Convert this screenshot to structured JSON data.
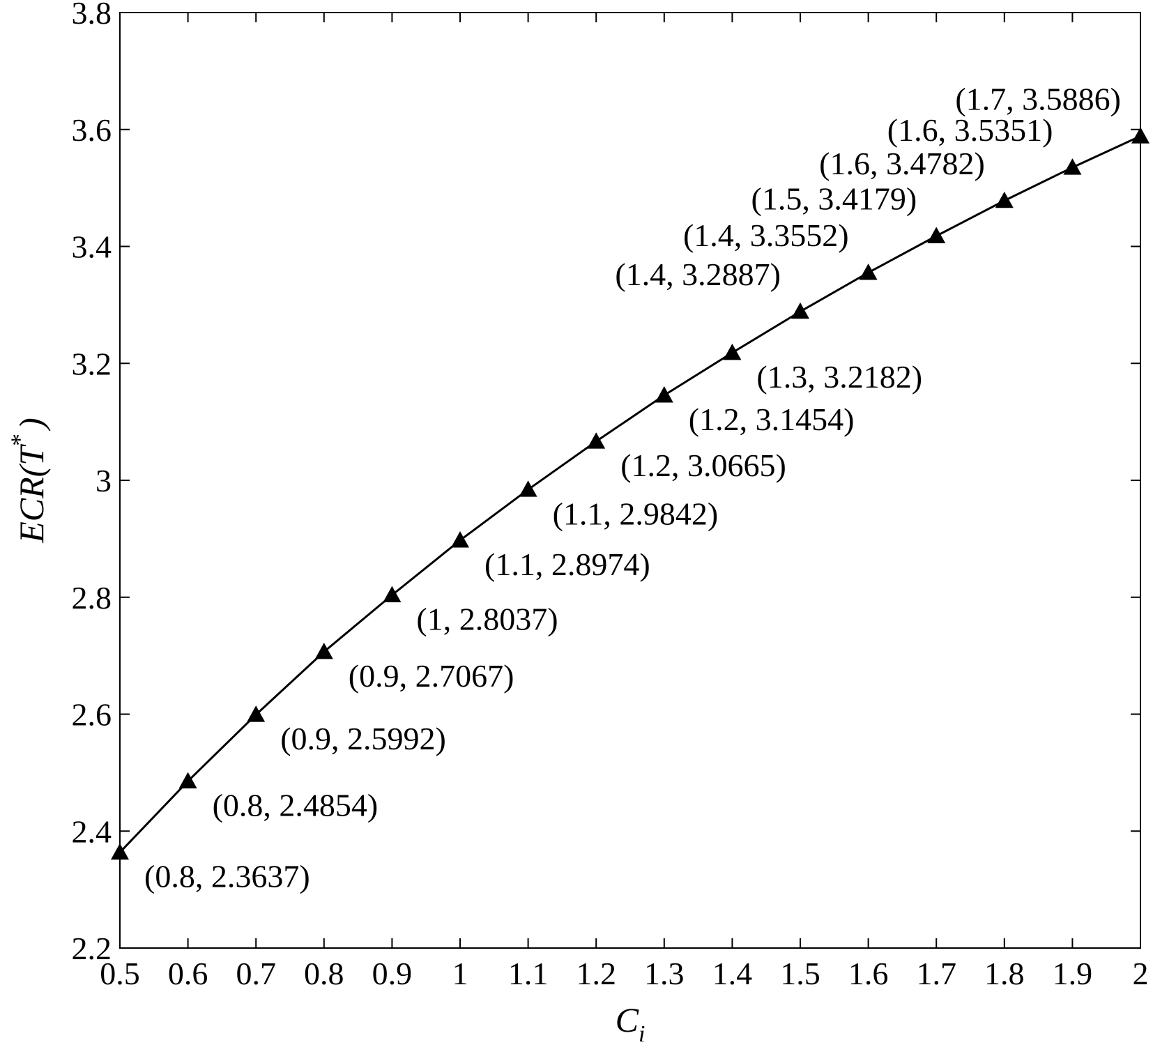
{
  "chart_data": {
    "type": "line",
    "title": "",
    "xlabel": "C",
    "xlabel_subscript": "i",
    "ylabel": "ECR(T",
    "ylabel_superscript": "*",
    "ylabel_suffix": ")",
    "xlim": [
      0.5,
      2
    ],
    "ylim": [
      2.2,
      3.8
    ],
    "xticks": [
      0.5,
      0.6,
      0.7,
      0.8,
      0.9,
      1,
      1.1,
      1.2,
      1.3,
      1.4,
      1.5,
      1.6,
      1.7,
      1.8,
      1.9,
      2
    ],
    "xtick_labels": [
      "0.5",
      "0.6",
      "0.7",
      "0.8",
      "0.9",
      "1",
      "1.1",
      "1.2",
      "1.3",
      "1.4",
      "1.5",
      "1.6",
      "1.7",
      "1.8",
      "1.9",
      "2"
    ],
    "yticks": [
      2.2,
      2.4,
      2.6,
      2.8,
      3,
      3.2,
      3.4,
      3.6,
      3.8
    ],
    "ytick_labels": [
      "2.2",
      "2.4",
      "2.6",
      "2.8",
      "3",
      "3.2",
      "3.4",
      "3.6",
      "3.8"
    ],
    "grid": false,
    "marker": "triangle",
    "line_color": "#000000",
    "series": [
      {
        "x": [
          0.5,
          0.6,
          0.7,
          0.8,
          0.9,
          1.0,
          1.1,
          1.2,
          1.3,
          1.4,
          1.5,
          1.6,
          1.7,
          1.8,
          1.9,
          2.0
        ],
        "y": [
          2.3637,
          2.4854,
          2.5992,
          2.7067,
          2.8037,
          2.8974,
          2.9842,
          3.0665,
          3.1454,
          3.2182,
          3.2887,
          3.3552,
          3.4179,
          3.4782,
          3.5351,
          3.5886
        ]
      }
    ],
    "annotations": [
      {
        "text": "(0.8, 2.3637)",
        "placement": "below-right"
      },
      {
        "text": "(0.8, 2.4854)",
        "placement": "below-right"
      },
      {
        "text": "(0.9, 2.5992)",
        "placement": "below-right"
      },
      {
        "text": "(0.9, 2.7067)",
        "placement": "below-right"
      },
      {
        "text": "(1, 2.8037)",
        "placement": "below-right"
      },
      {
        "text": "(1.1, 2.8974)",
        "placement": "below-right"
      },
      {
        "text": "(1.1, 2.9842)",
        "placement": "below-right"
      },
      {
        "text": "(1.2, 3.0665)",
        "placement": "below-right"
      },
      {
        "text": "(1.2, 3.1454)",
        "placement": "below-right"
      },
      {
        "text": "(1.3, 3.2182)",
        "placement": "below-right"
      },
      {
        "text": "(1.4, 3.2887)",
        "placement": "above-left"
      },
      {
        "text": "(1.4, 3.3552)",
        "placement": "above-left"
      },
      {
        "text": "(1.5, 3.4179)",
        "placement": "above-left"
      },
      {
        "text": "(1.6, 3.4782)",
        "placement": "above-left"
      },
      {
        "text": "(1.6, 3.5351)",
        "placement": "above-left"
      },
      {
        "text": "(1.7, 3.5886)",
        "placement": "above-left"
      }
    ]
  }
}
